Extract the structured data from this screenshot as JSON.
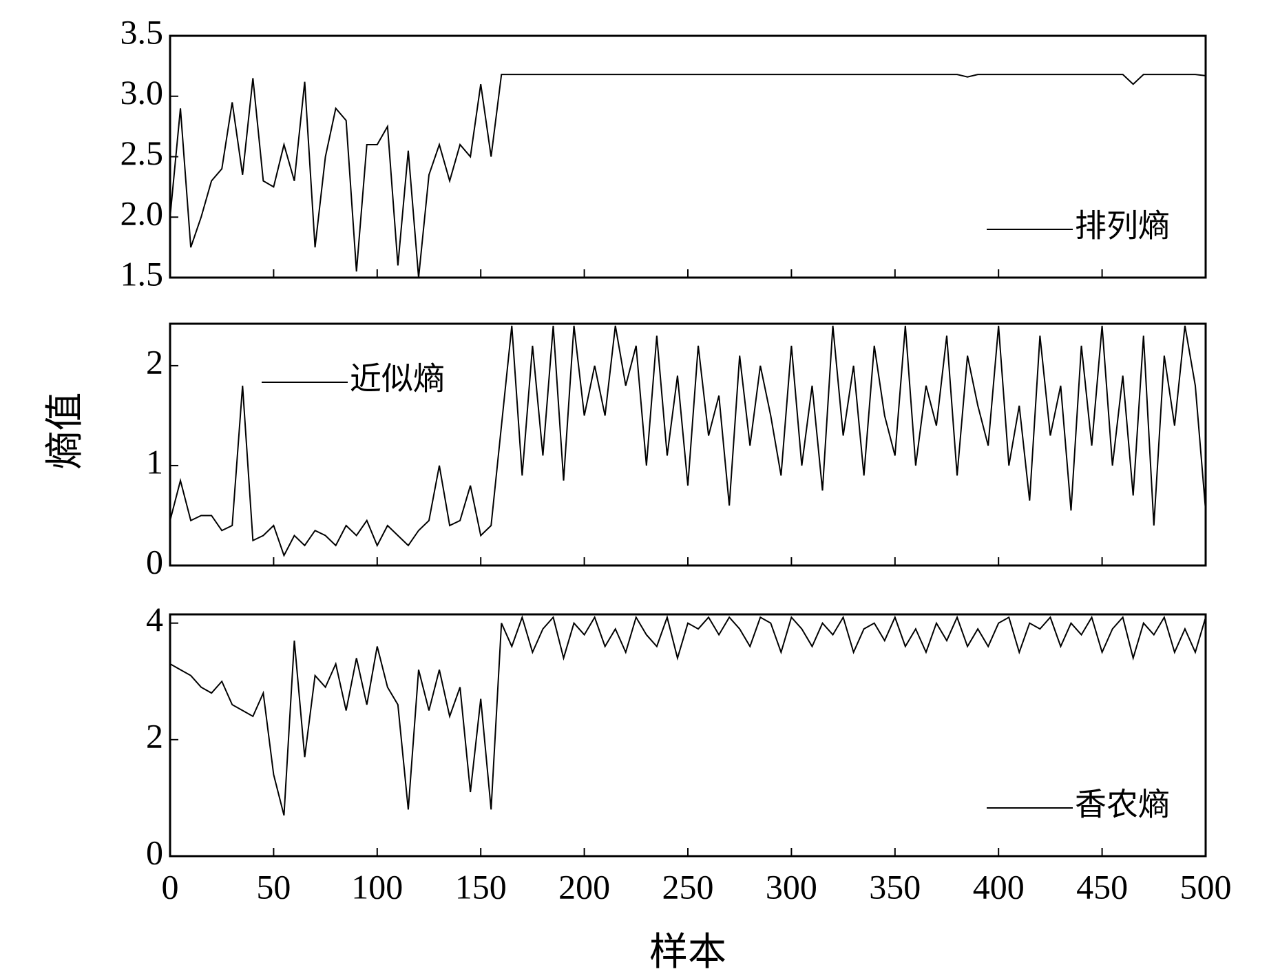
{
  "chart_data": [
    {
      "type": "line",
      "legend": "lower right",
      "ylim": [
        1.5,
        3.5
      ],
      "yticks": [
        1.5,
        {
          "value": 2,
          "label": "2.0"
        },
        2.5,
        {
          "value": 3,
          "label": "3.0"
        },
        3.5
      ],
      "xlim": [
        0,
        500
      ],
      "x": [
        0,
        5,
        10,
        15,
        20,
        25,
        30,
        35,
        40,
        45,
        50,
        55,
        60,
        65,
        70,
        75,
        80,
        85,
        90,
        95,
        100,
        105,
        110,
        115,
        120,
        125,
        130,
        135,
        140,
        145,
        150,
        155,
        160,
        165,
        170,
        175,
        180,
        185,
        190,
        195,
        200,
        205,
        210,
        215,
        220,
        225,
        230,
        235,
        240,
        245,
        250,
        255,
        260,
        265,
        270,
        275,
        280,
        285,
        290,
        295,
        300,
        305,
        310,
        315,
        320,
        325,
        330,
        335,
        340,
        345,
        350,
        355,
        360,
        365,
        370,
        375,
        380,
        385,
        390,
        395,
        400,
        405,
        410,
        415,
        420,
        425,
        430,
        435,
        440,
        445,
        450,
        455,
        460,
        465,
        470,
        475,
        480,
        485,
        490,
        495,
        500
      ],
      "series": [
        {
          "name": "排列熵",
          "color": "#000000",
          "values": [
            2.0,
            2.9,
            1.75,
            2.0,
            2.3,
            2.4,
            2.95,
            2.35,
            3.15,
            2.3,
            2.25,
            2.6,
            2.3,
            3.12,
            1.75,
            2.5,
            2.9,
            2.8,
            1.55,
            2.6,
            2.6,
            2.75,
            1.6,
            2.55,
            1.5,
            2.35,
            2.6,
            2.3,
            2.6,
            2.5,
            3.1,
            2.5,
            3.18,
            3.18,
            3.18,
            3.18,
            3.18,
            3.18,
            3.18,
            3.18,
            3.18,
            3.18,
            3.18,
            3.18,
            3.18,
            3.18,
            3.18,
            3.18,
            3.18,
            3.18,
            3.18,
            3.18,
            3.18,
            3.18,
            3.18,
            3.18,
            3.18,
            3.18,
            3.18,
            3.18,
            3.18,
            3.18,
            3.18,
            3.18,
            3.18,
            3.18,
            3.18,
            3.18,
            3.18,
            3.18,
            3.18,
            3.18,
            3.18,
            3.18,
            3.18,
            3.18,
            3.18,
            3.16,
            3.18,
            3.18,
            3.18,
            3.18,
            3.18,
            3.18,
            3.18,
            3.18,
            3.18,
            3.18,
            3.18,
            3.18,
            3.18,
            3.18,
            3.18,
            3.1,
            3.18,
            3.18,
            3.18,
            3.18,
            3.18,
            3.18,
            3.17
          ]
        }
      ]
    },
    {
      "type": "line",
      "legend": "upper left",
      "ylim": [
        0,
        2.42
      ],
      "yticks": [
        0,
        1,
        2
      ],
      "ylabel": "熵值",
      "xlim": [
        0,
        500
      ],
      "x": [
        0,
        5,
        10,
        15,
        20,
        25,
        30,
        35,
        40,
        45,
        50,
        55,
        60,
        65,
        70,
        75,
        80,
        85,
        90,
        95,
        100,
        105,
        110,
        115,
        120,
        125,
        130,
        135,
        140,
        145,
        150,
        155,
        160,
        165,
        170,
        175,
        180,
        185,
        190,
        195,
        200,
        205,
        210,
        215,
        220,
        225,
        230,
        235,
        240,
        245,
        250,
        255,
        260,
        265,
        270,
        275,
        280,
        285,
        290,
        295,
        300,
        305,
        310,
        315,
        320,
        325,
        330,
        335,
        340,
        345,
        350,
        355,
        360,
        365,
        370,
        375,
        380,
        385,
        390,
        395,
        400,
        405,
        410,
        415,
        420,
        425,
        430,
        435,
        440,
        445,
        450,
        455,
        460,
        465,
        470,
        475,
        480,
        485,
        490,
        495,
        500
      ],
      "series": [
        {
          "name": "近似熵",
          "color": "#000000",
          "values": [
            0.45,
            0.85,
            0.45,
            0.5,
            0.5,
            0.35,
            0.4,
            1.8,
            0.25,
            0.3,
            0.4,
            0.1,
            0.3,
            0.2,
            0.35,
            0.3,
            0.2,
            0.4,
            0.3,
            0.45,
            0.2,
            0.4,
            0.3,
            0.2,
            0.35,
            0.45,
            1.0,
            0.4,
            0.45,
            0.8,
            0.3,
            0.4,
            1.4,
            2.4,
            0.9,
            2.2,
            1.1,
            2.4,
            0.85,
            2.4,
            1.5,
            2.0,
            1.5,
            2.4,
            1.8,
            2.2,
            1.0,
            2.3,
            1.1,
            1.9,
            0.8,
            2.2,
            1.3,
            1.7,
            0.6,
            2.1,
            1.2,
            2.0,
            1.5,
            0.9,
            2.2,
            1.0,
            1.8,
            0.75,
            2.4,
            1.3,
            2.0,
            0.9,
            2.2,
            1.5,
            1.1,
            2.4,
            1.0,
            1.8,
            1.4,
            2.3,
            0.9,
            2.1,
            1.6,
            1.2,
            2.4,
            1.0,
            1.6,
            0.65,
            2.3,
            1.3,
            1.8,
            0.55,
            2.2,
            1.2,
            2.4,
            1.0,
            1.9,
            0.7,
            2.3,
            0.4,
            2.1,
            1.4,
            2.4,
            1.8,
            0.55
          ]
        }
      ]
    },
    {
      "type": "line",
      "legend": "lower right",
      "ylim": [
        0,
        4.15
      ],
      "yticks": [
        0,
        2,
        4
      ],
      "xlabel": "样本",
      "xlim": [
        0,
        500
      ],
      "xticks": [
        0,
        50,
        100,
        150,
        200,
        250,
        300,
        350,
        400,
        450,
        500
      ],
      "x": [
        0,
        5,
        10,
        15,
        20,
        25,
        30,
        35,
        40,
        45,
        50,
        55,
        60,
        65,
        70,
        75,
        80,
        85,
        90,
        95,
        100,
        105,
        110,
        115,
        120,
        125,
        130,
        135,
        140,
        145,
        150,
        155,
        160,
        165,
        170,
        175,
        180,
        185,
        190,
        195,
        200,
        205,
        210,
        215,
        220,
        225,
        230,
        235,
        240,
        245,
        250,
        255,
        260,
        265,
        270,
        275,
        280,
        285,
        290,
        295,
        300,
        305,
        310,
        315,
        320,
        325,
        330,
        335,
        340,
        345,
        350,
        355,
        360,
        365,
        370,
        375,
        380,
        385,
        390,
        395,
        400,
        405,
        410,
        415,
        420,
        425,
        430,
        435,
        440,
        445,
        450,
        455,
        460,
        465,
        470,
        475,
        480,
        485,
        490,
        495,
        500
      ],
      "series": [
        {
          "name": "香农熵",
          "color": "#000000",
          "values": [
            3.3,
            3.2,
            3.1,
            2.9,
            2.8,
            3.0,
            2.6,
            2.5,
            2.4,
            2.8,
            1.4,
            0.7,
            3.7,
            1.7,
            3.1,
            2.9,
            3.3,
            2.5,
            3.4,
            2.6,
            3.6,
            2.9,
            2.6,
            0.8,
            3.2,
            2.5,
            3.2,
            2.4,
            2.9,
            1.1,
            2.7,
            0.8,
            4.0,
            3.6,
            4.1,
            3.5,
            3.9,
            4.1,
            3.4,
            4.0,
            3.8,
            4.1,
            3.6,
            3.9,
            3.5,
            4.1,
            3.8,
            3.6,
            4.1,
            3.4,
            4.0,
            3.9,
            4.1,
            3.8,
            4.1,
            3.9,
            3.6,
            4.1,
            4.0,
            3.5,
            4.1,
            3.9,
            3.6,
            4.0,
            3.8,
            4.1,
            3.5,
            3.9,
            4.0,
            3.7,
            4.1,
            3.6,
            3.9,
            3.5,
            4.0,
            3.7,
            4.1,
            3.6,
            3.9,
            3.6,
            4.0,
            4.1,
            3.5,
            4.0,
            3.9,
            4.1,
            3.6,
            4.0,
            3.8,
            4.1,
            3.5,
            3.9,
            4.1,
            3.4,
            4.0,
            3.8,
            4.1,
            3.5,
            3.9,
            3.5,
            4.1
          ]
        }
      ]
    }
  ]
}
